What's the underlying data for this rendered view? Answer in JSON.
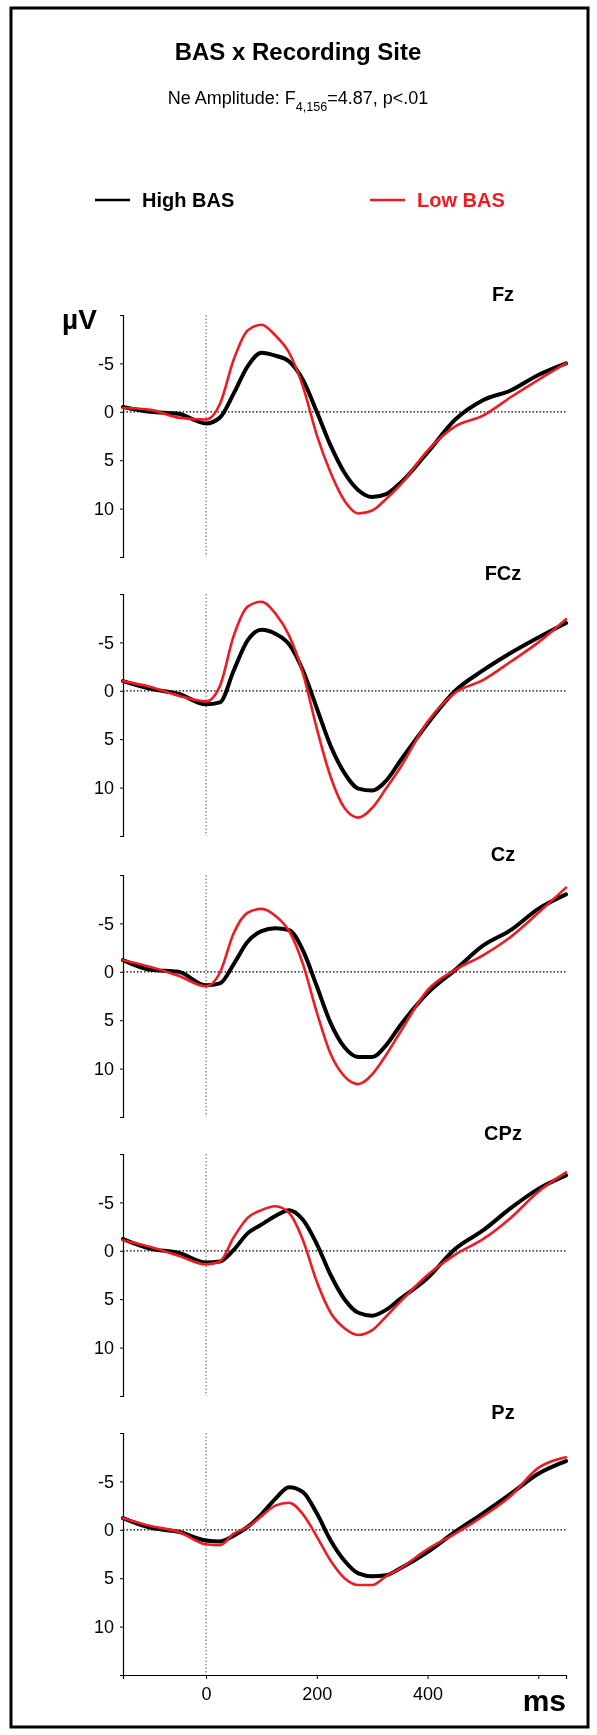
{
  "chart_data": [
    {
      "type": "line",
      "title": "BAS x Recording Site",
      "subtitle": "Ne Amplitude: F$_{4,156}$=4.87, p<.01",
      "ylabel": "µV",
      "annotations": [
        "Fz"
      ],
      "legend": "top",
      "tick_labels": "y",
      "line_style": "solid",
      "x": [
        -150,
        -100,
        -50,
        0,
        25,
        50,
        75,
        100,
        125,
        150,
        175,
        200,
        225,
        250,
        275,
        300,
        325,
        350,
        400,
        450,
        500,
        550,
        600,
        650
      ],
      "xlim": [
        -150,
        650
      ],
      "ylim": [
        15,
        -10
      ],
      "yticks": [
        -5,
        0,
        5,
        10
      ],
      "ref_lines": [
        {
          "axis": "x",
          "value": 0,
          "line_style": "dotted",
          "color": "#555555"
        },
        {
          "axis": "y",
          "value": 0,
          "line_style": "dotted",
          "color": "#000000"
        }
      ],
      "series": [
        {
          "name": "High BAS",
          "color": "#000000",
          "values": [
            -0.5,
            0,
            0.2,
            1.2,
            0.6,
            -1.9,
            -4.7,
            -6.1,
            -5.8,
            -5.2,
            -3.3,
            0,
            3.5,
            6.3,
            8.1,
            8.8,
            8.5,
            7.4,
            4.2,
            0.8,
            -1.2,
            -2.2,
            -3.8,
            -5
          ]
        },
        {
          "name": "Low BAS",
          "color": "#ed1c24",
          "values": [
            -0.4,
            -0.2,
            0.6,
            0.8,
            -0.8,
            -5.4,
            -8.4,
            -9,
            -7.9,
            -6.1,
            -2.6,
            2.4,
            6.3,
            9.2,
            10.5,
            10.2,
            9,
            7.6,
            4,
            1.5,
            0.4,
            -1.5,
            -3.3,
            -5
          ]
        }
      ]
    },
    {
      "type": "line",
      "annotations": [
        "FCz"
      ],
      "tick_labels": "y",
      "line_style": "solid",
      "x": [
        -150,
        -100,
        -50,
        0,
        25,
        50,
        75,
        100,
        125,
        150,
        175,
        200,
        225,
        250,
        275,
        300,
        325,
        350,
        400,
        450,
        500,
        550,
        600,
        650
      ],
      "xlim": [
        -150,
        650
      ],
      "ylim": [
        15,
        -10
      ],
      "yticks": [
        -5,
        0,
        5,
        10
      ],
      "ref_lines": [
        {
          "axis": "x",
          "value": 0,
          "line_style": "dotted",
          "color": "#555555"
        },
        {
          "axis": "y",
          "value": 0,
          "line_style": "dotted",
          "color": "#000000"
        }
      ],
      "series": [
        {
          "color": "#000000",
          "values": [
            -1,
            -0.2,
            0.3,
            1.4,
            1.2,
            -2.1,
            -5.2,
            -6.3,
            -5.9,
            -4.8,
            -2.1,
            1.8,
            5.7,
            8.5,
            10.1,
            10.3,
            9.3,
            7.3,
            3.4,
            0,
            -2.1,
            -3.9,
            -5.5,
            -7
          ]
        },
        {
          "color": "#ed1c24",
          "values": [
            -1,
            -0.4,
            0.5,
            1.1,
            -0.5,
            -5.7,
            -8.7,
            -9.2,
            -8,
            -5.7,
            -1.8,
            3.9,
            8.9,
            12.1,
            13.1,
            12.1,
            10.1,
            8,
            3.2,
            0.2,
            -1.1,
            -3,
            -5,
            -7.4
          ]
        }
      ]
    },
    {
      "type": "line",
      "annotations": [
        "Cz"
      ],
      "tick_labels": "y",
      "line_style": "solid",
      "x": [
        -150,
        -100,
        -50,
        0,
        25,
        50,
        75,
        100,
        125,
        150,
        175,
        200,
        225,
        250,
        275,
        300,
        325,
        350,
        400,
        450,
        500,
        550,
        600,
        650
      ],
      "xlim": [
        -150,
        650
      ],
      "ylim": [
        15,
        -10
      ],
      "yticks": [
        -5,
        0,
        5,
        10
      ],
      "ref_lines": [
        {
          "axis": "x",
          "value": 0,
          "line_style": "dotted",
          "color": "#555555"
        },
        {
          "axis": "y",
          "value": 0,
          "line_style": "dotted",
          "color": "#000000"
        }
      ],
      "series": [
        {
          "color": "#000000",
          "values": [
            -1.2,
            -0.2,
            0,
            1.4,
            1.2,
            -0.8,
            -3.1,
            -4.2,
            -4.5,
            -4.3,
            -2.2,
            1.5,
            5.3,
            7.8,
            8.8,
            8.8,
            7.6,
            5.6,
            2.2,
            -0.2,
            -2.7,
            -4.3,
            -6.5,
            -8
          ]
        },
        {
          "color": "#ed1c24",
          "values": [
            -1.2,
            -0.5,
            0.4,
            1.5,
            0.1,
            -4,
            -6.1,
            -6.5,
            -5.8,
            -4.2,
            -0.8,
            4.2,
            8.5,
            10.8,
            11.6,
            10.6,
            8.6,
            6.3,
            1.9,
            -0.2,
            -1.7,
            -3.6,
            -6.1,
            -8.7
          ]
        }
      ]
    },
    {
      "type": "line",
      "annotations": [
        "CPz"
      ],
      "tick_labels": "y",
      "line_style": "solid",
      "x": [
        -150,
        -100,
        -50,
        0,
        25,
        50,
        75,
        100,
        125,
        150,
        175,
        200,
        225,
        250,
        275,
        300,
        325,
        350,
        400,
        450,
        500,
        550,
        600,
        650
      ],
      "xlim": [
        -150,
        650
      ],
      "ylim": [
        15,
        -10
      ],
      "yticks": [
        -5,
        0,
        5,
        10
      ],
      "ref_lines": [
        {
          "axis": "x",
          "value": 0,
          "line_style": "dotted",
          "color": "#555555"
        },
        {
          "axis": "y",
          "value": 0,
          "line_style": "dotted",
          "color": "#000000"
        }
      ],
      "series": [
        {
          "color": "#000000",
          "values": [
            -1.2,
            -0.2,
            0.2,
            1.2,
            1.1,
            -0.1,
            -1.8,
            -2.7,
            -3.6,
            -4.2,
            -3.2,
            -0.7,
            2.5,
            5,
            6.4,
            6.7,
            6.1,
            5,
            2.8,
            -0.2,
            -2.1,
            -4.4,
            -6.4,
            -7.8
          ]
        },
        {
          "color": "#ed1c24",
          "values": [
            -1.1,
            -0.4,
            0.5,
            1.4,
            1.1,
            -1.4,
            -3.4,
            -4.2,
            -4.6,
            -3.9,
            -1.1,
            3.2,
            6.4,
            8,
            8.7,
            8.2,
            6.8,
            5.3,
            2.5,
            0.4,
            -1.2,
            -3.4,
            -6.1,
            -8.1
          ]
        }
      ]
    },
    {
      "type": "line",
      "annotations": [
        "Pz"
      ],
      "xlabel": "ms",
      "line_style": "solid",
      "x": [
        -150,
        -100,
        -50,
        0,
        25,
        50,
        75,
        100,
        125,
        150,
        175,
        200,
        225,
        250,
        275,
        300,
        325,
        350,
        400,
        450,
        500,
        550,
        600,
        650
      ],
      "xlim": [
        -150,
        650
      ],
      "xticks": [
        0,
        200,
        400,
        {
          "value": 600,
          "label": null
        }
      ],
      "ylim": [
        15,
        -10
      ],
      "yticks": [
        -5,
        0,
        5,
        10
      ],
      "ref_lines": [
        {
          "axis": "x",
          "value": 0,
          "line_style": "dotted",
          "color": "#555555"
        },
        {
          "axis": "y",
          "value": 0,
          "line_style": "dotted",
          "color": "#000000"
        }
      ],
      "series": [
        {
          "color": "#000000",
          "values": [
            -1.2,
            -0.2,
            0.2,
            1.1,
            1.2,
            0.6,
            -0.3,
            -1.6,
            -3.2,
            -4.4,
            -3.9,
            -1.7,
            1.1,
            3.2,
            4.5,
            4.8,
            4.7,
            4,
            2.3,
            0.2,
            -1.7,
            -3.7,
            -5.8,
            -7.1
          ]
        },
        {
          "color": "#ed1c24",
          "values": [
            -1.2,
            -0.4,
            0.2,
            1.5,
            1.6,
            0.4,
            -0.3,
            -1.4,
            -2.5,
            -2.8,
            -1.6,
            0.7,
            3.2,
            5,
            5.7,
            5.7,
            4.8,
            4,
            2,
            0.4,
            -1.4,
            -3.5,
            -6.4,
            -7.5
          ]
        }
      ]
    }
  ]
}
